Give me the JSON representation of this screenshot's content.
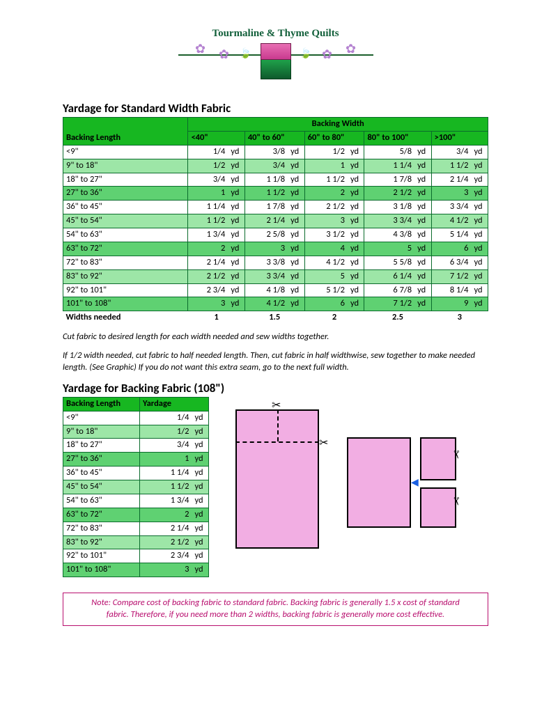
{
  "logo": {
    "text": "Tourmaline & Thyme Quilts"
  },
  "table1": {
    "title": "Yardage for Standard Width Fabric",
    "top_header": "Backing Width",
    "length_header": "Backing Length",
    "width_cols": [
      "<40\"",
      "40\" to 60\"",
      "60\" to 80\"",
      "80\" to 100\"",
      ">100\""
    ],
    "unit": "yd",
    "rows": [
      {
        "len": "<9\"",
        "v": [
          "1/4",
          "3/8",
          "1/2",
          "5/8",
          "3/4"
        ],
        "cls": "row-white"
      },
      {
        "len": "9\" to 18\"",
        "v": [
          "1/2",
          "3/4",
          "1",
          "1 1/4",
          "1 1/2"
        ],
        "cls": "row-light"
      },
      {
        "len": "18\" to 27\"",
        "v": [
          "3/4",
          "1 1/8",
          "1 1/2",
          "1 7/8",
          "2 1/4"
        ],
        "cls": "row-white"
      },
      {
        "len": "27\" to 36\"",
        "v": [
          "1",
          "1 1/2",
          "2",
          "2 1/2",
          "3"
        ],
        "cls": "row-mid"
      },
      {
        "len": "36\" to 45\"",
        "v": [
          "1 1/4",
          "1 7/8",
          "2 1/2",
          "3 1/8",
          "3 3/4"
        ],
        "cls": "row-white"
      },
      {
        "len": "45\" to 54\"",
        "v": [
          "1 1/2",
          "2 1/4",
          "3",
          "3 3/4",
          "4 1/2"
        ],
        "cls": "row-light"
      },
      {
        "len": "54\" to 63\"",
        "v": [
          "1 3/4",
          "2 5/8",
          "3 1/2",
          "4 3/8",
          "5 1/4"
        ],
        "cls": "row-white"
      },
      {
        "len": "63\" to 72\"",
        "v": [
          "2",
          "3",
          "4",
          "5",
          "6"
        ],
        "cls": "row-mid"
      },
      {
        "len": "72\" to 83\"",
        "v": [
          "2 1/4",
          "3 3/8",
          "4 1/2",
          "5 5/8",
          "6 3/4"
        ],
        "cls": "row-white"
      },
      {
        "len": "83\" to 92\"",
        "v": [
          "2 1/2",
          "3 3/4",
          "5",
          "6 1/4",
          "7 1/2"
        ],
        "cls": "row-light"
      },
      {
        "len": "92\" to 101\"",
        "v": [
          "2 3/4",
          "4 1/8",
          "5 1/2",
          "6 7/8",
          "8 1/4"
        ],
        "cls": "row-white"
      },
      {
        "len": "101\" to 108\"",
        "v": [
          "3",
          "4 1/2",
          "6",
          "7 1/2",
          "9"
        ],
        "cls": "row-mid"
      }
    ],
    "widths_label": "Widths needed",
    "widths": [
      "1",
      "1.5",
      "2",
      "2.5",
      "3"
    ]
  },
  "instructions": {
    "p1": "Cut fabric to desired length for each width needed and sew widths together.",
    "p2": "If 1/2 width needed, cut fabric to half needed length. Then, cut fabric in half widthwise, sew together to make needed length. (See Graphic) If you do not want this extra seam, go to the next full width."
  },
  "table2": {
    "title": "Yardage for Backing Fabric (108\")",
    "length_header": "Backing Length",
    "yardage_header": "Yardage",
    "unit": "yd",
    "rows": [
      {
        "len": "<9\"",
        "v": "1/4",
        "cls": "row-white"
      },
      {
        "len": "9\" to 18\"",
        "v": "1/2",
        "cls": "row-light"
      },
      {
        "len": "18\" to 27\"",
        "v": "3/4",
        "cls": "row-white"
      },
      {
        "len": "27\" to 36\"",
        "v": "1",
        "cls": "row-mid"
      },
      {
        "len": "36\" to 45\"",
        "v": "1 1/4",
        "cls": "row-white"
      },
      {
        "len": "45\" to 54\"",
        "v": "1 1/2",
        "cls": "row-light"
      },
      {
        "len": "54\" to 63\"",
        "v": "1 3/4",
        "cls": "row-white"
      },
      {
        "len": "63\" to 72\"",
        "v": "2",
        "cls": "row-mid"
      },
      {
        "len": "72\" to 83\"",
        "v": "2 1/4",
        "cls": "row-white"
      },
      {
        "len": "83\" to 92\"",
        "v": "2 1/2",
        "cls": "row-light"
      },
      {
        "len": "92\" to 101\"",
        "v": "2 3/4",
        "cls": "row-white"
      },
      {
        "len": "101\" to 108\"",
        "v": "3",
        "cls": "row-mid"
      }
    ]
  },
  "note": "Note: Compare cost of backing fabric to standard fabric. Backing fabric is generally 1.5 x cost of standard fabric. Therefore, if you need more than 2 widths, backing fabric is generally more cost effective.",
  "colors": {
    "header_green": "#17b721",
    "row_light": "#9de6a7",
    "row_mid": "#5fd172",
    "border": "#0a6b2c",
    "note_border": "#b80e6e",
    "fabric_pink": "#f2aee3"
  }
}
